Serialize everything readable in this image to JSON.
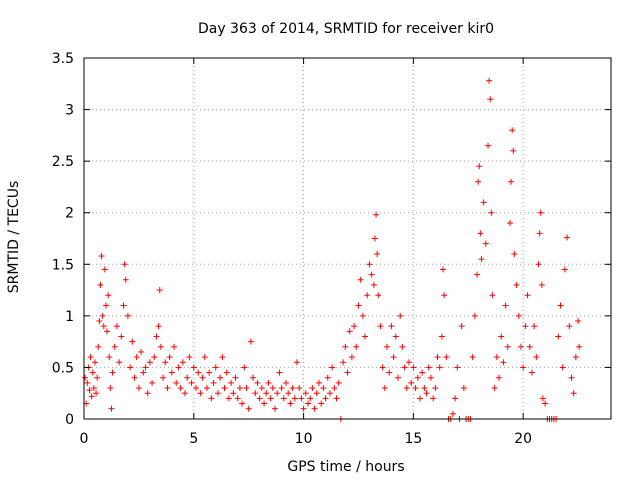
{
  "chart_data": {
    "type": "scatter",
    "title": "Day 363 of 2014, SRMTID for receiver kir0",
    "xlabel": "GPS time / hours",
    "ylabel": "SRMTID / TECUs",
    "xlim": [
      0,
      24
    ],
    "ylim": [
      0,
      3.5
    ],
    "x_ticks": [
      0,
      5,
      10,
      15,
      20
    ],
    "x_tick_labels": [
      "0",
      "5",
      "10",
      "15",
      "20"
    ],
    "y_ticks": [
      0,
      0.5,
      1,
      1.5,
      2,
      2.5,
      3,
      3.5
    ],
    "y_tick_labels": [
      "0",
      "0.5",
      "1",
      "1.5",
      "2",
      "2.5",
      "3",
      "3.5"
    ],
    "grid": true,
    "marker": "+",
    "series": [
      {
        "name": "kir0",
        "color": "#ff0000",
        "points": [
          [
            0.05,
            0.4
          ],
          [
            0.1,
            0.15
          ],
          [
            0.15,
            0.35
          ],
          [
            0.2,
            0.5
          ],
          [
            0.25,
            0.28
          ],
          [
            0.3,
            0.6
          ],
          [
            0.35,
            0.22
          ],
          [
            0.4,
            0.45
          ],
          [
            0.45,
            0.3
          ],
          [
            0.5,
            0.55
          ],
          [
            0.55,
            0.25
          ],
          [
            0.6,
            0.4
          ],
          [
            0.65,
            0.7
          ],
          [
            0.7,
            0.95
          ],
          [
            0.75,
            1.3
          ],
          [
            0.8,
            1.58
          ],
          [
            0.85,
            1.0
          ],
          [
            0.9,
            0.9
          ],
          [
            0.95,
            1.45
          ],
          [
            1.0,
            1.1
          ],
          [
            1.05,
            0.85
          ],
          [
            1.1,
            1.2
          ],
          [
            1.15,
            0.6
          ],
          [
            1.2,
            0.3
          ],
          [
            1.25,
            0.1
          ],
          [
            1.3,
            0.45
          ],
          [
            1.4,
            0.7
          ],
          [
            1.5,
            0.9
          ],
          [
            1.6,
            0.55
          ],
          [
            1.7,
            0.8
          ],
          [
            1.8,
            1.1
          ],
          [
            1.85,
            1.5
          ],
          [
            1.9,
            1.35
          ],
          [
            2.0,
            1.0
          ],
          [
            2.1,
            0.5
          ],
          [
            2.2,
            0.75
          ],
          [
            2.3,
            0.4
          ],
          [
            2.4,
            0.6
          ],
          [
            2.5,
            0.3
          ],
          [
            2.6,
            0.65
          ],
          [
            2.7,
            0.45
          ],
          [
            2.8,
            0.5
          ],
          [
            2.9,
            0.25
          ],
          [
            3.0,
            0.55
          ],
          [
            3.1,
            0.35
          ],
          [
            3.2,
            0.6
          ],
          [
            3.3,
            0.8
          ],
          [
            3.4,
            0.9
          ],
          [
            3.45,
            1.25
          ],
          [
            3.5,
            0.7
          ],
          [
            3.6,
            0.4
          ],
          [
            3.7,
            0.55
          ],
          [
            3.8,
            0.3
          ],
          [
            3.9,
            0.6
          ],
          [
            4.0,
            0.45
          ],
          [
            4.1,
            0.7
          ],
          [
            4.2,
            0.35
          ],
          [
            4.3,
            0.5
          ],
          [
            4.4,
            0.3
          ],
          [
            4.5,
            0.55
          ],
          [
            4.6,
            0.25
          ],
          [
            4.7,
            0.4
          ],
          [
            4.8,
            0.6
          ],
          [
            4.9,
            0.35
          ],
          [
            5.0,
            0.5
          ],
          [
            5.1,
            0.3
          ],
          [
            5.2,
            0.45
          ],
          [
            5.3,
            0.25
          ],
          [
            5.4,
            0.4
          ],
          [
            5.5,
            0.6
          ],
          [
            5.6,
            0.3
          ],
          [
            5.7,
            0.45
          ],
          [
            5.8,
            0.2
          ],
          [
            5.9,
            0.35
          ],
          [
            6.0,
            0.5
          ],
          [
            6.1,
            0.25
          ],
          [
            6.2,
            0.4
          ],
          [
            6.3,
            0.6
          ],
          [
            6.4,
            0.3
          ],
          [
            6.5,
            0.45
          ],
          [
            6.6,
            0.2
          ],
          [
            6.7,
            0.35
          ],
          [
            6.8,
            0.25
          ],
          [
            6.9,
            0.4
          ],
          [
            7.0,
            0.2
          ],
          [
            7.1,
            0.3
          ],
          [
            7.2,
            0.15
          ],
          [
            7.3,
            0.5
          ],
          [
            7.4,
            0.3
          ],
          [
            7.5,
            0.1
          ],
          [
            7.6,
            0.75
          ],
          [
            7.7,
            0.4
          ],
          [
            7.8,
            0.25
          ],
          [
            7.9,
            0.35
          ],
          [
            8.0,
            0.2
          ],
          [
            8.1,
            0.3
          ],
          [
            8.2,
            0.15
          ],
          [
            8.3,
            0.25
          ],
          [
            8.4,
            0.35
          ],
          [
            8.5,
            0.2
          ],
          [
            8.6,
            0.3
          ],
          [
            8.7,
            0.1
          ],
          [
            8.8,
            0.25
          ],
          [
            8.9,
            0.45
          ],
          [
            9.0,
            0.3
          ],
          [
            9.1,
            0.2
          ],
          [
            9.2,
            0.35
          ],
          [
            9.3,
            0.25
          ],
          [
            9.4,
            0.15
          ],
          [
            9.5,
            0.3
          ],
          [
            9.6,
            0.2
          ],
          [
            9.7,
            0.55
          ],
          [
            9.8,
            0.3
          ],
          [
            9.9,
            0.2
          ],
          [
            10.0,
            0.1
          ],
          [
            10.1,
            0.25
          ],
          [
            10.2,
            0.15
          ],
          [
            10.3,
            0.2
          ],
          [
            10.4,
            0.3
          ],
          [
            10.5,
            0.1
          ],
          [
            10.6,
            0.25
          ],
          [
            10.7,
            0.35
          ],
          [
            10.8,
            0.15
          ],
          [
            10.9,
            0.3
          ],
          [
            11.0,
            0.2
          ],
          [
            11.1,
            0.4
          ],
          [
            11.2,
            0.25
          ],
          [
            11.3,
            0.5
          ],
          [
            11.4,
            0.3
          ],
          [
            11.5,
            0.2
          ],
          [
            11.6,
            0.35
          ],
          [
            11.7,
            0.0
          ],
          [
            11.8,
            0.55
          ],
          [
            11.9,
            0.7
          ],
          [
            12.0,
            0.45
          ],
          [
            12.1,
            0.85
          ],
          [
            12.2,
            0.6
          ],
          [
            12.3,
            0.9
          ],
          [
            12.4,
            0.7
          ],
          [
            12.5,
            1.1
          ],
          [
            12.6,
            1.35
          ],
          [
            12.7,
            1.0
          ],
          [
            12.8,
            0.8
          ],
          [
            12.9,
            1.2
          ],
          [
            13.0,
            1.5
          ],
          [
            13.1,
            1.4
          ],
          [
            13.2,
            1.3
          ],
          [
            13.25,
            1.75
          ],
          [
            13.3,
            1.98
          ],
          [
            13.35,
            1.6
          ],
          [
            13.4,
            1.2
          ],
          [
            13.5,
            0.9
          ],
          [
            13.6,
            0.5
          ],
          [
            13.7,
            0.3
          ],
          [
            13.8,
            0.7
          ],
          [
            13.9,
            0.45
          ],
          [
            14.0,
            0.9
          ],
          [
            14.1,
            0.6
          ],
          [
            14.2,
            0.8
          ],
          [
            14.3,
            0.4
          ],
          [
            14.4,
            1.0
          ],
          [
            14.5,
            0.7
          ],
          [
            14.6,
            0.5
          ],
          [
            14.7,
            0.3
          ],
          [
            14.8,
            0.55
          ],
          [
            14.9,
            0.35
          ],
          [
            15.0,
            0.5
          ],
          [
            15.1,
            0.3
          ],
          [
            15.2,
            0.4
          ],
          [
            15.3,
            0.2
          ],
          [
            15.4,
            0.45
          ],
          [
            15.5,
            0.3
          ],
          [
            15.6,
            0.25
          ],
          [
            15.7,
            0.5
          ],
          [
            15.8,
            0.4
          ],
          [
            15.9,
            0.2
          ],
          [
            16.0,
            0.3
          ],
          [
            16.1,
            0.6
          ],
          [
            16.2,
            0.5
          ],
          [
            16.3,
            0.8
          ],
          [
            16.35,
            1.45
          ],
          [
            16.4,
            1.2
          ],
          [
            16.5,
            0.6
          ],
          [
            16.6,
            0.0
          ],
          [
            16.7,
            0.0
          ],
          [
            16.8,
            0.05
          ],
          [
            16.9,
            0.2
          ],
          [
            17.0,
            0.5
          ],
          [
            17.1,
            0.0
          ],
          [
            17.2,
            0.9
          ],
          [
            17.3,
            0.3
          ],
          [
            17.4,
            0.0
          ],
          [
            17.5,
            0.0
          ],
          [
            17.6,
            0.0
          ],
          [
            17.7,
            0.6
          ],
          [
            17.8,
            1.0
          ],
          [
            17.9,
            1.4
          ],
          [
            17.95,
            2.3
          ],
          [
            18.0,
            2.45
          ],
          [
            18.05,
            1.8
          ],
          [
            18.1,
            1.55
          ],
          [
            18.2,
            2.1
          ],
          [
            18.3,
            1.7
          ],
          [
            18.4,
            2.65
          ],
          [
            18.45,
            3.28
          ],
          [
            18.5,
            3.1
          ],
          [
            18.55,
            2.0
          ],
          [
            18.6,
            1.2
          ],
          [
            18.7,
            0.3
          ],
          [
            18.8,
            0.6
          ],
          [
            18.9,
            0.4
          ],
          [
            19.0,
            0.8
          ],
          [
            19.1,
            0.55
          ],
          [
            19.2,
            1.1
          ],
          [
            19.3,
            0.7
          ],
          [
            19.4,
            1.9
          ],
          [
            19.45,
            2.3
          ],
          [
            19.5,
            2.8
          ],
          [
            19.55,
            2.6
          ],
          [
            19.6,
            1.6
          ],
          [
            19.7,
            1.3
          ],
          [
            19.8,
            1.0
          ],
          [
            19.9,
            0.7
          ],
          [
            20.0,
            0.5
          ],
          [
            20.1,
            0.9
          ],
          [
            20.2,
            1.2
          ],
          [
            20.3,
            0.7
          ],
          [
            20.4,
            0.45
          ],
          [
            20.5,
            0.9
          ],
          [
            20.6,
            0.6
          ],
          [
            20.7,
            1.5
          ],
          [
            20.75,
            1.8
          ],
          [
            20.8,
            2.0
          ],
          [
            20.85,
            1.3
          ],
          [
            20.9,
            0.2
          ],
          [
            21.0,
            0.15
          ],
          [
            21.1,
            0.0
          ],
          [
            21.2,
            0.0
          ],
          [
            21.3,
            0.0
          ],
          [
            21.4,
            0.0
          ],
          [
            21.5,
            0.0
          ],
          [
            21.6,
            0.8
          ],
          [
            21.7,
            1.1
          ],
          [
            21.8,
            0.5
          ],
          [
            21.9,
            1.45
          ],
          [
            22.0,
            1.76
          ],
          [
            22.1,
            0.9
          ],
          [
            22.2,
            0.4
          ],
          [
            22.3,
            0.25
          ],
          [
            22.4,
            0.6
          ],
          [
            22.5,
            0.95
          ],
          [
            22.55,
            0.7
          ]
        ]
      }
    ]
  }
}
